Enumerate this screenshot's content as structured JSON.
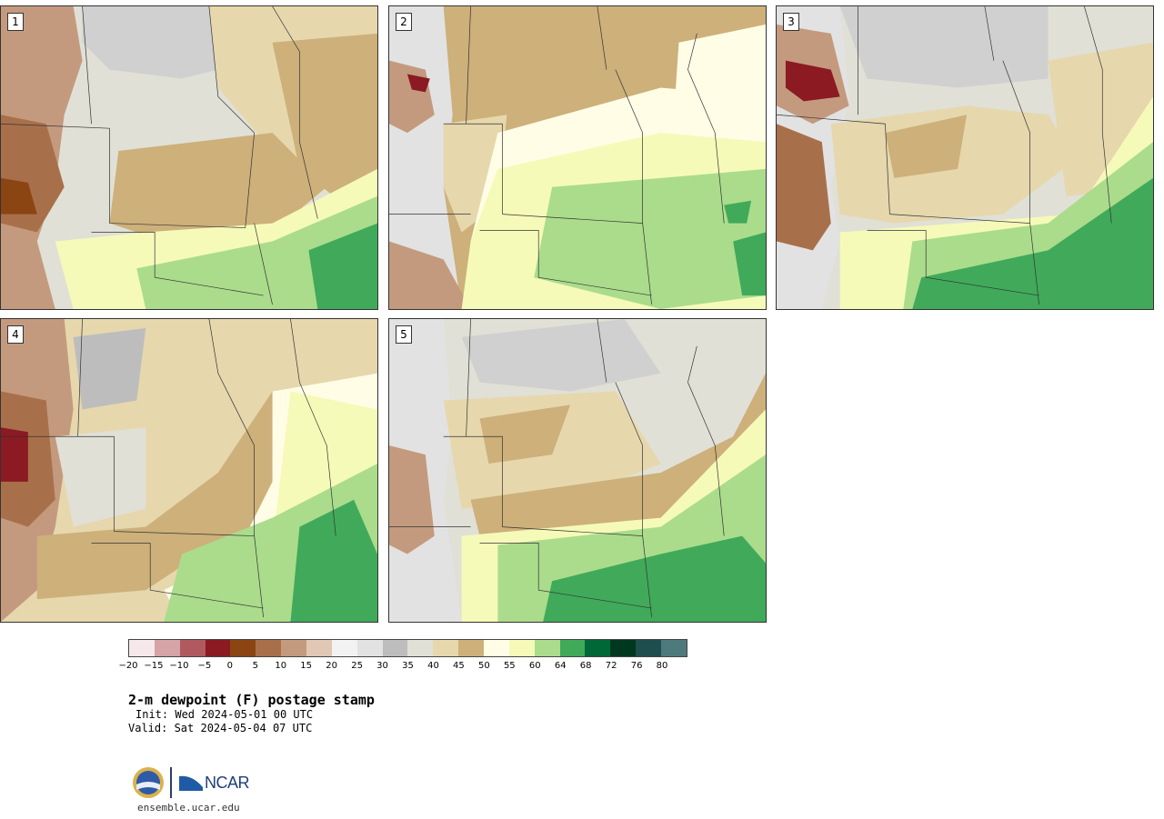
{
  "panels": [
    {
      "label": "1"
    },
    {
      "label": "2"
    },
    {
      "label": "3"
    },
    {
      "label": "4"
    },
    {
      "label": "5"
    }
  ],
  "colorbar": {
    "colors": [
      "#f6e8ea",
      "#d6a3a6",
      "#b05a60",
      "#8b1a22",
      "#8b4513",
      "#a8704a",
      "#c49a7e",
      "#e0c8b4",
      "#f2f2f2",
      "#e2e2e2",
      "#bdbdbd",
      "#e0e0d6",
      "#e6d7ad",
      "#cdb07a",
      "#fffde6",
      "#f6fab8",
      "#aadc8c",
      "#40aa5a",
      "#006837",
      "#00381f",
      "#1e4e4e",
      "#4e7a7e"
    ],
    "tick_labels": [
      "−20",
      "−15",
      "−10",
      "−5",
      "0",
      "5",
      "10",
      "15",
      "20",
      "25",
      "30",
      "35",
      "40",
      "45",
      "50",
      "55",
      "60",
      "64",
      "68",
      "72",
      "76",
      "80"
    ]
  },
  "title": "2-m dewpoint (F) postage stamp",
  "init": "Init: Wed 2024-05-01 00 UTC",
  "valid": "Valid: Sat 2024-05-04 07 UTC",
  "logos": {
    "ncar": "NCAR"
  },
  "footer": {
    "url": "ensemble.ucar.edu"
  }
}
